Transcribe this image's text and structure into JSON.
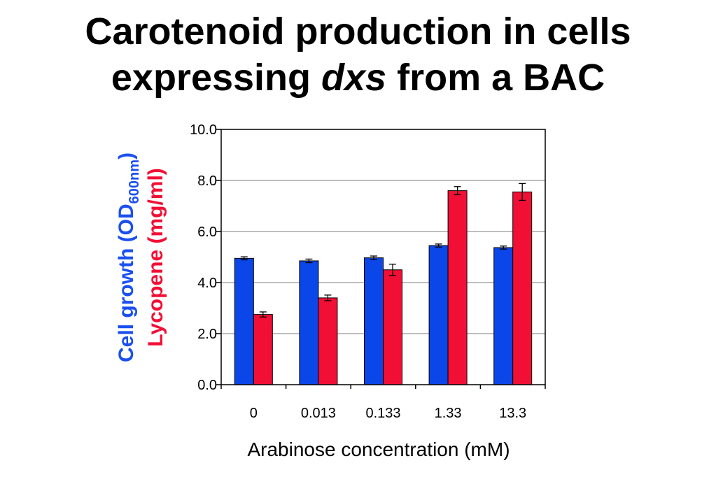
{
  "chart_data": {
    "type": "bar",
    "title_line1": "Carotenoid production in cells",
    "title_line2_pre": "expressing ",
    "title_line2_italic": "dxs",
    "title_line2_post": " from a BAC",
    "xlabel": "Arabinose concentration (mM)",
    "ylabel_blue_main": "Cell growth (OD",
    "ylabel_blue_sub": "600nm",
    "ylabel_blue_close": ")",
    "ylabel_red": "Lycopene (mg/ml)",
    "categories": [
      "0",
      "0.013",
      "0.133",
      "1.33",
      "13.3"
    ],
    "ylim": [
      0,
      10
    ],
    "yticks": [
      "0.0",
      "2.0",
      "4.0",
      "6.0",
      "8.0",
      "10.0"
    ],
    "grid": true,
    "series": [
      {
        "values": [
          4.95,
          4.85,
          4.97,
          5.45,
          5.37
        ],
        "errors": [
          0.06,
          0.07,
          0.07,
          0.06,
          0.06
        ],
        "color": "#0b46e8"
      },
      {
        "values": [
          2.75,
          3.4,
          4.5,
          7.6,
          7.55
        ],
        "errors": [
          0.1,
          0.11,
          0.22,
          0.16,
          0.33
        ],
        "color": "#f20f35"
      }
    ],
    "label_colors": {
      "blue": "#1a4ff0",
      "red": "#f20f35"
    }
  }
}
